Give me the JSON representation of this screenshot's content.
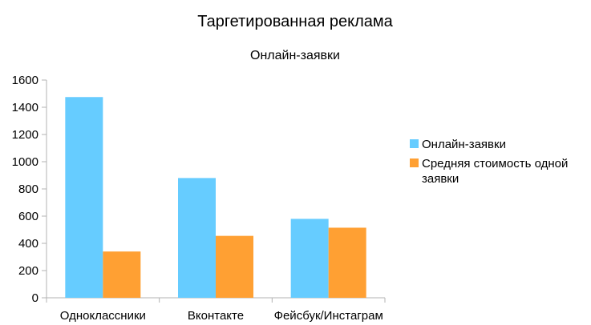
{
  "chart_data": {
    "type": "bar",
    "title": "Таргетированная реклама",
    "subtitle": "Онлайн-заявки",
    "categories": [
      "Одноклассники",
      "Вконтакте",
      "Фейсбук/Инстаграм"
    ],
    "series": [
      {
        "name": "Онлайн-заявки",
        "values": [
          1475,
          880,
          580
        ],
        "color": "#66ccff"
      },
      {
        "name": "Средняя стоимость одной заявки",
        "values": [
          340,
          455,
          515
        ],
        "color": "#ffa033"
      }
    ],
    "legend_lines": [
      [
        "Онлайн-заявки"
      ],
      [
        "Средняя стоимость одной",
        "заявки"
      ]
    ],
    "ylim": [
      0,
      1600
    ],
    "yticks": [
      0,
      200,
      400,
      600,
      800,
      1000,
      1200,
      1400,
      1600
    ],
    "grid": false,
    "legend_position": "right",
    "axis_color": "#b3b3b3"
  }
}
